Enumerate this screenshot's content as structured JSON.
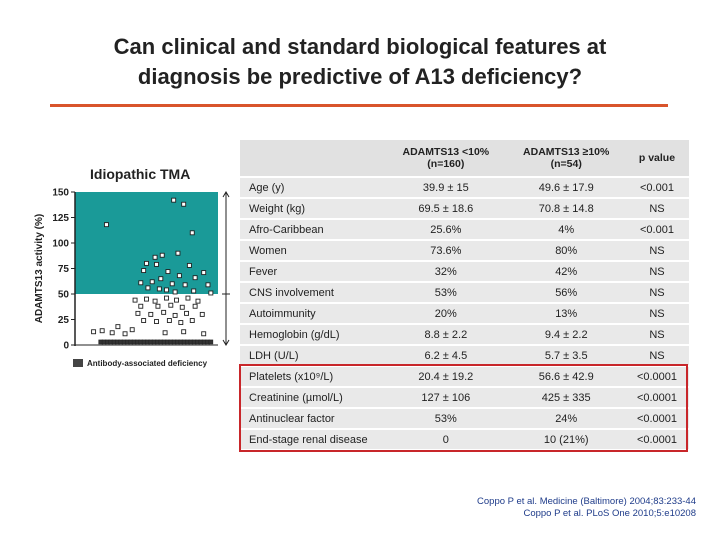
{
  "slide": {
    "title_line1": "Can clinical and standard biological features at",
    "title_line2": "diagnosis be predictive of A13 deficiency?",
    "accent_color": "#d9542b"
  },
  "scatter": {
    "title": "Idiopathic TMA",
    "ylabel": "ADAMTS13 activity (%)",
    "yticks": [
      "0",
      "25",
      "50",
      "75",
      "100",
      "125",
      "150"
    ],
    "legend_label": "Antibody-associated deficiency",
    "band_color": "#1a9a98",
    "band_threshold": 50,
    "chart_data": {
      "type": "scatter",
      "ylim": [
        0,
        150
      ],
      "open_points_above_50": [
        {
          "x": 0.22,
          "y": 118
        },
        {
          "x": 0.69,
          "y": 142
        },
        {
          "x": 0.76,
          "y": 138
        },
        {
          "x": 0.82,
          "y": 110
        },
        {
          "x": 0.56,
          "y": 86
        },
        {
          "x": 0.61,
          "y": 88
        },
        {
          "x": 0.72,
          "y": 90
        },
        {
          "x": 0.5,
          "y": 80
        },
        {
          "x": 0.57,
          "y": 79
        },
        {
          "x": 0.8,
          "y": 78
        },
        {
          "x": 0.48,
          "y": 73
        },
        {
          "x": 0.65,
          "y": 72
        },
        {
          "x": 0.9,
          "y": 71
        },
        {
          "x": 0.73,
          "y": 68
        },
        {
          "x": 0.6,
          "y": 65
        },
        {
          "x": 0.84,
          "y": 66
        },
        {
          "x": 0.54,
          "y": 62
        },
        {
          "x": 0.46,
          "y": 61
        },
        {
          "x": 0.68,
          "y": 60
        },
        {
          "x": 0.77,
          "y": 59
        },
        {
          "x": 0.93,
          "y": 59
        },
        {
          "x": 0.51,
          "y": 56
        },
        {
          "x": 0.59,
          "y": 55
        },
        {
          "x": 0.64,
          "y": 54
        },
        {
          "x": 0.83,
          "y": 53
        },
        {
          "x": 0.95,
          "y": 51
        },
        {
          "x": 0.7,
          "y": 52
        }
      ],
      "open_points_below_50": [
        {
          "x": 0.42,
          "y": 44
        },
        {
          "x": 0.5,
          "y": 45
        },
        {
          "x": 0.56,
          "y": 43
        },
        {
          "x": 0.64,
          "y": 46
        },
        {
          "x": 0.71,
          "y": 44
        },
        {
          "x": 0.79,
          "y": 46
        },
        {
          "x": 0.86,
          "y": 43
        },
        {
          "x": 0.46,
          "y": 38
        },
        {
          "x": 0.58,
          "y": 38
        },
        {
          "x": 0.67,
          "y": 39
        },
        {
          "x": 0.75,
          "y": 37
        },
        {
          "x": 0.84,
          "y": 38
        },
        {
          "x": 0.44,
          "y": 31
        },
        {
          "x": 0.53,
          "y": 30
        },
        {
          "x": 0.62,
          "y": 32
        },
        {
          "x": 0.7,
          "y": 29
        },
        {
          "x": 0.78,
          "y": 31
        },
        {
          "x": 0.89,
          "y": 30
        },
        {
          "x": 0.48,
          "y": 24
        },
        {
          "x": 0.57,
          "y": 23
        },
        {
          "x": 0.66,
          "y": 24
        },
        {
          "x": 0.74,
          "y": 22
        },
        {
          "x": 0.82,
          "y": 24
        },
        {
          "x": 0.3,
          "y": 18
        },
        {
          "x": 0.13,
          "y": 13
        },
        {
          "x": 0.19,
          "y": 14
        },
        {
          "x": 0.26,
          "y": 12
        },
        {
          "x": 0.35,
          "y": 11
        },
        {
          "x": 0.4,
          "y": 15
        },
        {
          "x": 0.63,
          "y": 12
        },
        {
          "x": 0.76,
          "y": 13
        },
        {
          "x": 0.9,
          "y": 11
        }
      ],
      "filled_points_y": 3,
      "filled_points_count": 34
    }
  },
  "table": {
    "headers": [
      "",
      "ADAMTS13 <10%\n(n=160)",
      "ADAMTS13 ≥10%\n(n=54)",
      "p value"
    ],
    "rows": [
      [
        "Age (y)",
        "39.9 ± 15",
        "49.6 ± 17.9",
        "<0.001"
      ],
      [
        "Weight (kg)",
        "69.5 ± 18.6",
        "70.8 ± 14.8",
        "NS"
      ],
      [
        "Afro-Caribbean",
        "25.6%",
        "4%",
        "<0.001"
      ],
      [
        "Women",
        "73.6%",
        "80%",
        "NS"
      ],
      [
        "Fever",
        "32%",
        "42%",
        "NS"
      ],
      [
        "CNS involvement",
        "53%",
        "56%",
        "NS"
      ],
      [
        "Autoimmunity",
        "20%",
        "13%",
        "NS"
      ],
      [
        "Hemoglobin (g/dL)",
        "8.8 ± 2.2",
        "9.4 ± 2.2",
        "NS"
      ],
      [
        "LDH (U/L)",
        "6.2 ± 4.5",
        "5.7 ± 3.5",
        "NS"
      ],
      [
        "Platelets (x10⁹/L)",
        "20.4 ± 19.2",
        "56.6 ± 42.9",
        "<0.0001"
      ],
      [
        "Creatinine (µmol/L)",
        "127 ± 106",
        "425 ± 335",
        "<0.0001"
      ],
      [
        "Antinuclear factor",
        "53%",
        "24%",
        "<0.0001"
      ],
      [
        "End-stage renal disease",
        "0",
        "10 (21%)",
        "<0.0001"
      ]
    ],
    "highlight_color": "#c8262a"
  },
  "references": {
    "line1": "Coppo P et al. Medicine (Baltimore) 2004;83:233-44",
    "line2": "Coppo P et al. PLoS One 2010;5:e10208"
  }
}
